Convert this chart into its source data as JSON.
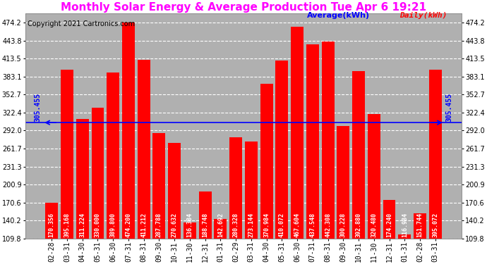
{
  "title": "Monthly Solar Energy & Average Production Tue Apr 6 19:21",
  "copyright": "Copyright 2021 Cartronics.com",
  "legend_avg": "Average(kWh)",
  "legend_daily": "Daily(kWh)",
  "categories": [
    "02-28",
    "03-31",
    "04-30",
    "05-31",
    "06-30",
    "07-31",
    "08-31",
    "09-30",
    "10-31",
    "11-30",
    "12-31",
    "01-31",
    "02-29",
    "03-31",
    "04-30",
    "05-31",
    "06-30",
    "07-31",
    "08-31",
    "09-30",
    "10-31",
    "11-30",
    "12-31",
    "01-31",
    "02-28",
    "03-31"
  ],
  "values": [
    170.356,
    395.168,
    311.224,
    330.0,
    389.8,
    474.2,
    411.212,
    287.788,
    270.632,
    136.384,
    188.748,
    142.692,
    280.328,
    273.144,
    370.984,
    410.072,
    467.604,
    437.548,
    442.308,
    300.228,
    392.88,
    320.48,
    174.24,
    116.984,
    151.744,
    395.072
  ],
  "bar_labels": [
    "170.356",
    "395.168",
    "311.224",
    "330.000",
    "389.800",
    "474.200",
    "411.212",
    "287.788",
    "270.632",
    "136.384",
    "188.748",
    "142.692",
    "280.328",
    "273.144",
    "370.984",
    "410.072",
    "467.604",
    "437.548",
    "442.308",
    "300.228",
    "392.880",
    "320.480",
    "174.240",
    "116.984",
    "151.744",
    "395.072"
  ],
  "average": 305.455,
  "bar_color": "#ff0000",
  "avg_line_color": "#0000ff",
  "background_color": "#ffffff",
  "grid_color": "#ffffff",
  "plot_bg_color": "#b0b0b0",
  "title_color": "#ff00ff",
  "bar_text_color": "#ffffff",
  "yticks": [
    109.8,
    140.2,
    170.6,
    200.9,
    231.3,
    261.7,
    292.0,
    322.4,
    352.7,
    383.1,
    413.5,
    443.8,
    474.2
  ],
  "ymin": 109.8,
  "ymax": 490.0,
  "avg_label": "305.455",
  "title_fontsize": 11,
  "tick_fontsize": 7,
  "bar_label_fontsize": 6,
  "copyright_fontsize": 7,
  "legend_fontsize": 8
}
